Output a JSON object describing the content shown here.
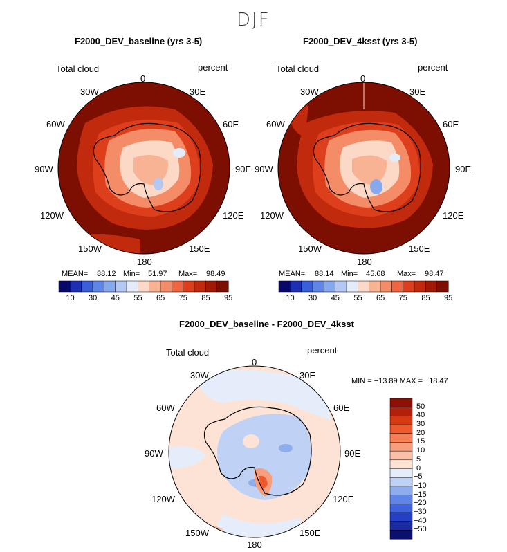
{
  "season": "DJF",
  "panels": [
    {
      "title": "F2000_DEV_baseline (yrs 3-5)",
      "variable": "Total cloud",
      "units": "percent",
      "stats": {
        "mean_label": "MEAN=",
        "mean": "88.12",
        "min_label": "Min=",
        "min": "51.97",
        "max_label": "Max=",
        "max": "98.49"
      }
    },
    {
      "title": "F2000_DEV_4ksst (yrs 3-5)",
      "variable": "Total cloud",
      "units": "percent",
      "stats": {
        "mean_label": "MEAN=",
        "mean": "88.14",
        "min_label": "Min=",
        "min": "45.68",
        "max_label": "Max=",
        "max": "98.47"
      }
    }
  ],
  "diff": {
    "title": "F2000_DEV_baseline - F2000_DEV_4ksst",
    "variable": "Total cloud",
    "units": "percent",
    "minmax": "MIN = −13.89 MAX =   18.47"
  },
  "lon_labels": [
    "0",
    "30E",
    "60E",
    "90E",
    "120E",
    "150E",
    "180",
    "150W",
    "120W",
    "90W",
    "60W",
    "30W"
  ],
  "colorbar_abs": {
    "levels": [
      10,
      30,
      45,
      55,
      65,
      75,
      85,
      95
    ],
    "colors": [
      "#08086b",
      "#1f2fb4",
      "#3b5fd8",
      "#5f86e6",
      "#86a8ee",
      "#b4c8f4",
      "#e4ecfa",
      "#fbd9c6",
      "#f8b394",
      "#f48d67",
      "#ee6540",
      "#dd3f1d",
      "#c22a0e",
      "#9e1a06",
      "#7d0f02"
    ]
  },
  "colorbar_diff": {
    "levels": [
      50,
      40,
      30,
      20,
      15,
      10,
      5,
      0,
      -5,
      -10,
      -15,
      -20,
      -30,
      -40,
      -50
    ],
    "colors": [
      "#8f0f04",
      "#b3200a",
      "#d63a12",
      "#ee5a2c",
      "#f57e56",
      "#f79e7d",
      "#f9c0a7",
      "#fde3d5",
      "#e5edfa",
      "#bfd1f4",
      "#8eadec",
      "#5f86e6",
      "#3f63de",
      "#2540c2",
      "#1a2aa0",
      "#0b0f6e"
    ]
  },
  "chart_data": [
    {
      "type": "heatmap",
      "projection": "south polar stereographic",
      "title": "F2000_DEV_baseline (yrs 3-5)",
      "variable": "Total cloud",
      "units": "percent",
      "mean": 88.12,
      "min": 51.97,
      "max": 98.49,
      "contour_levels": [
        10,
        30,
        45,
        55,
        65,
        75,
        85,
        95
      ]
    },
    {
      "type": "heatmap",
      "projection": "south polar stereographic",
      "title": "F2000_DEV_4ksst (yrs 3-5)",
      "variable": "Total cloud",
      "units": "percent",
      "mean": 88.14,
      "min": 45.68,
      "max": 98.47,
      "contour_levels": [
        10,
        30,
        45,
        55,
        65,
        75,
        85,
        95
      ]
    },
    {
      "type": "heatmap",
      "projection": "south polar stereographic",
      "title": "F2000_DEV_baseline - F2000_DEV_4ksst",
      "variable": "Total cloud",
      "units": "percent",
      "min": -13.89,
      "max": 18.47,
      "contour_levels": [
        -50,
        -40,
        -30,
        -20,
        -15,
        -10,
        -5,
        0,
        5,
        10,
        15,
        20,
        30,
        40,
        50
      ]
    }
  ]
}
